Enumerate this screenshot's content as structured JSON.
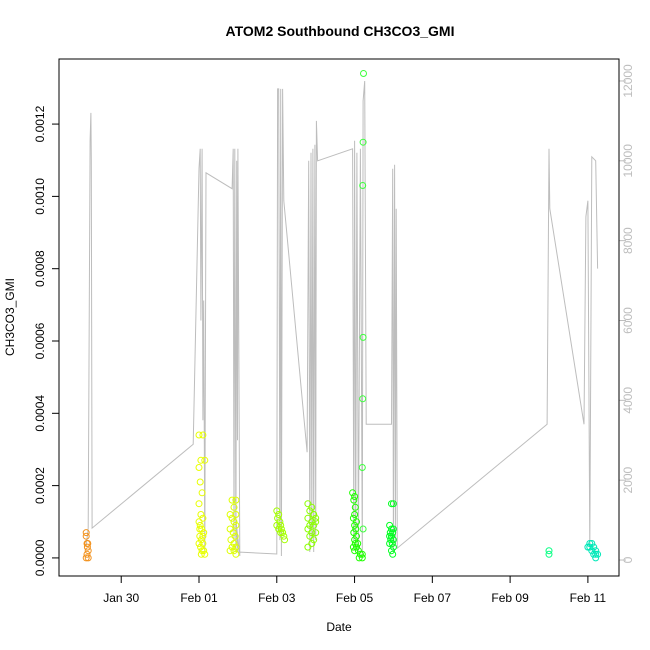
{
  "chart_data": {
    "type": "scatter",
    "title": "ATOM2 Southbound CH3CO3_GMI",
    "xlabel": "Date",
    "ylabel": "CH3CO3_GMI",
    "x_ticks": [
      "Jan 30",
      "Feb 01",
      "Feb 03",
      "Feb 05",
      "Feb 07",
      "Feb 09",
      "Feb 11"
    ],
    "x_tick_days": [
      30,
      32,
      34,
      36,
      38,
      40,
      42
    ],
    "xlim": [
      28.4,
      42.8
    ],
    "y_ticks": [
      "0.0000",
      "0.0002",
      "0.0004",
      "0.0006",
      "0.0008",
      "0.0010",
      "0.0012"
    ],
    "ylim": [
      -5e-05,
      0.00138
    ],
    "y2_ticks": [
      "0",
      "2000",
      "4000",
      "6000",
      "8000",
      "10000",
      "12000"
    ],
    "y2lim": [
      -400,
      12550
    ],
    "grid": false,
    "colors": {
      "altitude_line": "#bdbdbd",
      "point_scale": [
        "#ff8c00",
        "#ffd700",
        "#ffff00",
        "#7fff00",
        "#00ff00",
        "#00ff7f",
        "#00ffd0"
      ]
    },
    "series": [
      {
        "color": "#f2921e",
        "points": [
          [
            29.1,
            7e-05
          ],
          [
            29.1,
            6e-05
          ],
          [
            29.13,
            3e-05
          ],
          [
            29.15,
            2e-05
          ],
          [
            29.12,
            1e-05
          ],
          [
            29.15,
            0.0
          ],
          [
            29.1,
            0.0
          ],
          [
            29.14,
            4e-05
          ],
          [
            29.12,
            4e-05
          ]
        ]
      },
      {
        "color": "#e8ff00",
        "points": [
          [
            32.0,
            0.00034
          ],
          [
            32.1,
            0.00034
          ],
          [
            32.05,
            0.00027
          ],
          [
            32.15,
            0.00027
          ],
          [
            32.0,
            0.00025
          ],
          [
            32.03,
            0.00021
          ],
          [
            32.08,
            0.00018
          ],
          [
            32.0,
            0.00015
          ],
          [
            32.05,
            0.00012
          ],
          [
            32.1,
            0.00011
          ],
          [
            32.0,
            0.0001
          ],
          [
            32.03,
            9e-05
          ],
          [
            32.07,
            8e-05
          ],
          [
            32.12,
            7e-05
          ],
          [
            32.02,
            6e-05
          ],
          [
            32.06,
            5e-05
          ],
          [
            32.1,
            4e-05
          ],
          [
            32.0,
            4e-05
          ],
          [
            32.04,
            3e-05
          ],
          [
            32.08,
            2e-05
          ],
          [
            32.12,
            2e-05
          ],
          [
            32.15,
            1e-05
          ],
          [
            32.06,
            1e-05
          ],
          [
            32.02,
            8e-05
          ],
          [
            32.1,
            6e-05
          ]
        ]
      },
      {
        "color": "#deff00",
        "points": [
          [
            32.85,
            0.00016
          ],
          [
            32.95,
            0.00016
          ],
          [
            32.9,
            0.00014
          ],
          [
            32.8,
            0.00012
          ],
          [
            32.95,
            0.00012
          ],
          [
            32.85,
            0.00011
          ],
          [
            32.9,
            0.0001
          ],
          [
            32.95,
            9e-05
          ],
          [
            32.8,
            8e-05
          ],
          [
            32.88,
            7e-05
          ],
          [
            32.93,
            6e-05
          ],
          [
            32.82,
            5e-05
          ],
          [
            32.9,
            4e-05
          ],
          [
            32.95,
            3e-05
          ],
          [
            32.85,
            3e-05
          ],
          [
            32.8,
            2e-05
          ],
          [
            32.9,
            2e-05
          ],
          [
            32.95,
            1e-05
          ]
        ]
      },
      {
        "color": "#a4ff00",
        "points": [
          [
            34.0,
            0.00013
          ],
          [
            34.05,
            0.00012
          ],
          [
            34.02,
            0.00011
          ],
          [
            34.08,
            0.0001
          ],
          [
            34.1,
            9e-05
          ],
          [
            34.0,
            9e-05
          ],
          [
            34.12,
            8e-05
          ],
          [
            34.05,
            8e-05
          ],
          [
            34.15,
            7e-05
          ],
          [
            34.18,
            6e-05
          ],
          [
            34.2,
            5e-05
          ],
          [
            34.1,
            7e-05
          ]
        ]
      },
      {
        "color": "#8cff00",
        "points": [
          [
            34.8,
            0.00015
          ],
          [
            34.9,
            0.00014
          ],
          [
            34.85,
            0.00013
          ],
          [
            34.95,
            0.00012
          ],
          [
            34.8,
            0.00011
          ],
          [
            34.9,
            0.0001
          ],
          [
            35.0,
            0.0001
          ],
          [
            34.85,
            9e-05
          ],
          [
            34.95,
            9e-05
          ],
          [
            34.8,
            8e-05
          ],
          [
            34.9,
            7e-05
          ],
          [
            35.0,
            7e-05
          ],
          [
            34.85,
            6e-05
          ],
          [
            34.95,
            5e-05
          ],
          [
            34.9,
            4e-05
          ],
          [
            34.8,
            3e-05
          ],
          [
            34.95,
            0.00012
          ],
          [
            35.0,
            0.00011
          ]
        ]
      },
      {
        "color": "#20ff00",
        "points": [
          [
            35.95,
            0.00018
          ],
          [
            36.0,
            0.00017
          ],
          [
            35.98,
            0.00016
          ],
          [
            36.02,
            0.00014
          ],
          [
            36.0,
            0.00012
          ],
          [
            35.97,
            0.00011
          ],
          [
            36.05,
            0.0001
          ],
          [
            36.0,
            9e-05
          ],
          [
            36.03,
            8e-05
          ],
          [
            35.98,
            7e-05
          ],
          [
            36.05,
            6e-05
          ],
          [
            36.0,
            5e-05
          ],
          [
            36.02,
            4e-05
          ],
          [
            35.97,
            3e-05
          ],
          [
            36.05,
            3e-05
          ],
          [
            36.1,
            2e-05
          ],
          [
            36.15,
            1e-05
          ],
          [
            36.2,
            1e-05
          ],
          [
            36.12,
            0.0
          ],
          [
            36.2,
            0.0
          ],
          [
            36.0,
            2e-05
          ],
          [
            36.08,
            4e-05
          ]
        ]
      },
      {
        "color": "#3dff3d",
        "points": [
          [
            36.23,
            0.00134
          ],
          [
            36.22,
            0.00115
          ],
          [
            36.21,
            0.00103
          ],
          [
            36.22,
            0.00061
          ],
          [
            36.21,
            0.00044
          ],
          [
            36.2,
            0.00025
          ],
          [
            36.22,
            8e-05
          ]
        ]
      },
      {
        "color": "#00ff20",
        "points": [
          [
            36.95,
            0.00015
          ],
          [
            37.0,
            0.00015
          ],
          [
            36.9,
            9e-05
          ],
          [
            36.95,
            8e-05
          ],
          [
            37.0,
            8e-05
          ],
          [
            36.92,
            7e-05
          ],
          [
            36.98,
            7e-05
          ],
          [
            36.9,
            6e-05
          ],
          [
            36.95,
            6e-05
          ],
          [
            37.0,
            5e-05
          ],
          [
            36.93,
            5e-05
          ],
          [
            36.97,
            4e-05
          ],
          [
            36.9,
            4e-05
          ],
          [
            37.0,
            3e-05
          ],
          [
            36.95,
            2e-05
          ],
          [
            36.98,
            1e-05
          ]
        ]
      },
      {
        "color": "#00ff80",
        "points": [
          [
            41.0,
            2e-05
          ],
          [
            41.0,
            1e-05
          ]
        ]
      },
      {
        "color": "#00e8b8",
        "points": [
          [
            42.05,
            4e-05
          ],
          [
            42.1,
            4e-05
          ],
          [
            42.0,
            3e-05
          ],
          [
            42.05,
            3e-05
          ],
          [
            42.15,
            3e-05
          ],
          [
            42.1,
            2e-05
          ],
          [
            42.2,
            2e-05
          ],
          [
            42.15,
            1e-05
          ],
          [
            42.2,
            1e-05
          ],
          [
            42.2,
            0.0
          ],
          [
            42.25,
            1e-05
          ]
        ]
      }
    ],
    "altitude_line": {
      "color": "#bdbdbd",
      "points": [
        [
          29.1,
          350
        ],
        [
          29.15,
          800
        ],
        [
          29.2,
          10500
        ],
        [
          29.22,
          11200
        ],
        [
          29.23,
          10000
        ],
        [
          29.25,
          800
        ],
        [
          31.85,
          2900
        ],
        [
          32.0,
          9800
        ],
        [
          32.03,
          10300
        ],
        [
          32.05,
          6000
        ],
        [
          32.08,
          10300
        ],
        [
          32.1,
          3500
        ],
        [
          32.12,
          6500
        ],
        [
          32.15,
          200
        ],
        [
          32.18,
          9700
        ],
        [
          32.85,
          9300
        ],
        [
          32.88,
          10300
        ],
        [
          32.9,
          500
        ],
        [
          32.92,
          10300
        ],
        [
          32.95,
          200
        ],
        [
          32.97,
          10000
        ],
        [
          32.99,
          3000
        ],
        [
          33.0,
          10300
        ],
        [
          33.05,
          100
        ],
        [
          32.95,
          1000
        ],
        [
          33.0,
          200
        ],
        [
          34.0,
          150
        ],
        [
          34.02,
          11800
        ],
        [
          34.05,
          11800
        ],
        [
          34.08,
          500
        ],
        [
          34.1,
          11800
        ],
        [
          34.12,
          100
        ],
        [
          34.15,
          11800
        ],
        [
          34.18,
          9000
        ],
        [
          34.78,
          2700
        ],
        [
          34.82,
          10000
        ],
        [
          34.85,
          200
        ],
        [
          34.88,
          10200
        ],
        [
          34.9,
          500
        ],
        [
          34.93,
          10300
        ],
        [
          34.95,
          200
        ],
        [
          34.98,
          10400
        ],
        [
          35.0,
          500
        ],
        [
          35.02,
          11000
        ],
        [
          35.05,
          10000
        ],
        [
          35.95,
          10300
        ],
        [
          35.98,
          500
        ],
        [
          36.0,
          10500
        ],
        [
          36.03,
          300
        ],
        [
          36.06,
          10200
        ],
        [
          36.1,
          200
        ],
        [
          36.15,
          10300
        ],
        [
          36.2,
          100
        ],
        [
          36.22,
          11500
        ],
        [
          36.26,
          12000
        ],
        [
          36.3,
          3400
        ],
        [
          36.95,
          3400
        ],
        [
          36.98,
          9800
        ],
        [
          37.0,
          200
        ],
        [
          37.03,
          9900
        ],
        [
          37.05,
          400
        ],
        [
          37.07,
          8800
        ],
        [
          37.1,
          300
        ],
        [
          40.95,
          3400
        ],
        [
          41.0,
          10300
        ],
        [
          41.02,
          8800
        ],
        [
          41.9,
          3400
        ],
        [
          41.95,
          8600
        ],
        [
          42.0,
          9000
        ],
        [
          42.05,
          300
        ],
        [
          42.1,
          10100
        ],
        [
          42.2,
          10000
        ],
        [
          42.25,
          7300
        ]
      ]
    }
  }
}
